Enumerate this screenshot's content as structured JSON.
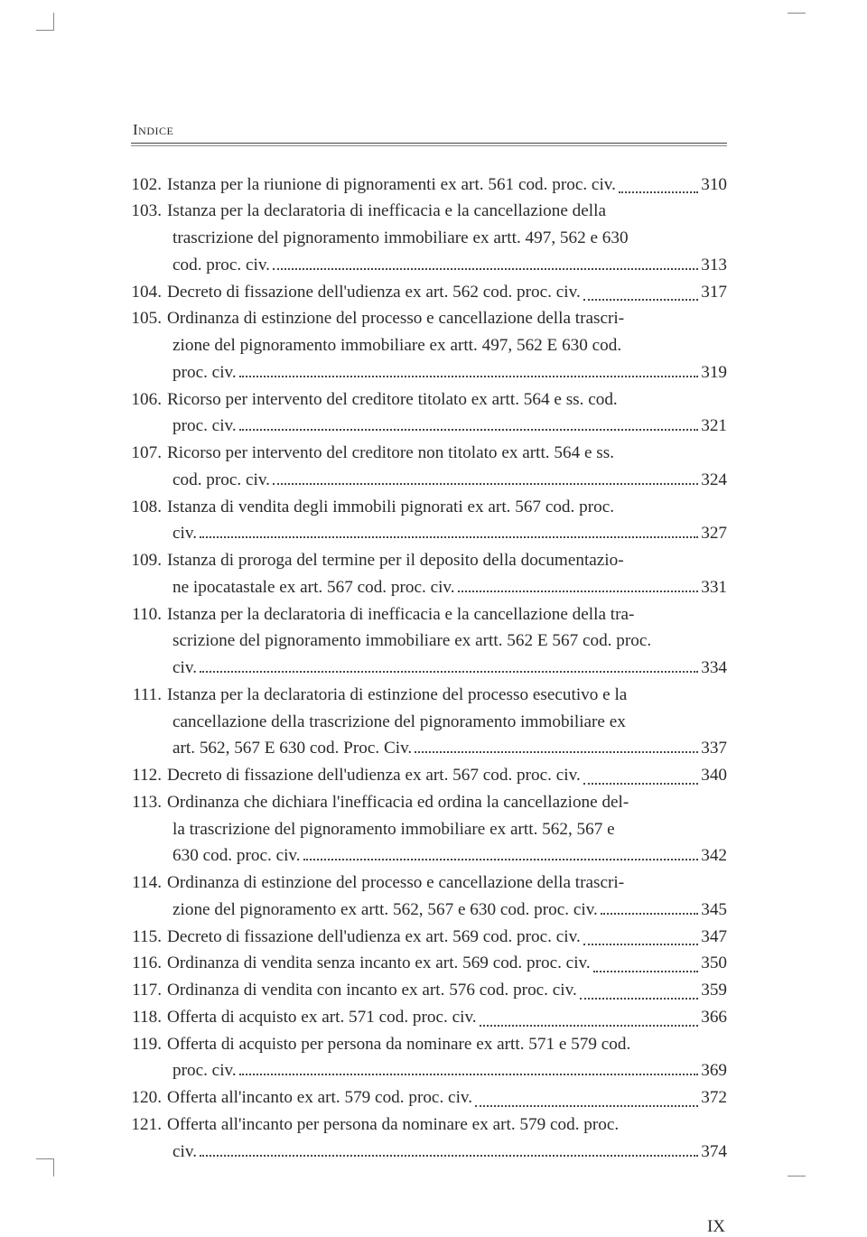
{
  "header": "Indice",
  "pageNumber": "IX",
  "entries": [
    {
      "num": "102.",
      "lines": [
        "Istanza per la riunione di pignoramenti ex art. 561 cod. proc. civ."
      ],
      "page": "310"
    },
    {
      "num": "103.",
      "lines": [
        "Istanza per la declaratoria di inefficacia e la cancellazione della",
        "trascrizione del pignoramento immobiliare ex artt. 497, 562 e 630",
        "cod. proc. civ."
      ],
      "page": "313"
    },
    {
      "num": "104.",
      "lines": [
        "Decreto di fissazione dell'udienza ex art. 562 cod. proc. civ. "
      ],
      "page": "317"
    },
    {
      "num": "105.",
      "lines": [
        "Ordinanza di estinzione del processo e cancellazione della trascri-",
        "zione del pignoramento immobiliare ex artt. 497, 562 E 630 cod.",
        "proc. civ."
      ],
      "page": "319"
    },
    {
      "num": "106.",
      "lines": [
        "Ricorso per intervento del creditore titolato ex artt. 564 e ss. cod.",
        "proc. civ."
      ],
      "page": "321"
    },
    {
      "num": "107.",
      "lines": [
        "Ricorso per intervento del creditore non titolato ex artt. 564 e ss.",
        "cod. proc. civ."
      ],
      "page": "324"
    },
    {
      "num": "108.",
      "lines": [
        "Istanza di vendita degli immobili pignorati ex art. 567 cod. proc.",
        "civ. "
      ],
      "page": "327"
    },
    {
      "num": "109.",
      "lines": [
        "Istanza di proroga del termine per il deposito della documentazio-",
        "ne ipocatastale ex art. 567 cod. proc. civ. "
      ],
      "page": "331"
    },
    {
      "num": "110.",
      "lines": [
        "Istanza per la declaratoria di inefficacia e la cancellazione della tra-",
        "scrizione del pignoramento immobiliare ex artt. 562 E 567 cod. proc.",
        "civ."
      ],
      "page": "334"
    },
    {
      "num": "111.",
      "lines": [
        "Istanza per la declaratoria di estinzione del processo esecutivo e la",
        "cancellazione della trascrizione del pignoramento immobiliare ex",
        "art. 562, 567 E 630 cod. Proc. Civ."
      ],
      "page": "337"
    },
    {
      "num": "112.",
      "lines": [
        "Decreto di fissazione dell'udienza ex art. 567 cod. proc. civ. "
      ],
      "page": "340"
    },
    {
      "num": "113.",
      "lines": [
        "Ordinanza che dichiara l'inefficacia ed ordina la cancellazione del-",
        "la trascrizione del pignoramento immobiliare ex artt. 562, 567 e",
        "630 cod. proc. civ."
      ],
      "page": "342"
    },
    {
      "num": "114.",
      "lines": [
        "Ordinanza di estinzione del processo e cancellazione della trascri-",
        "zione del pignoramento ex artt. 562, 567 e 630 cod. proc. civ."
      ],
      "page": "345"
    },
    {
      "num": "115.",
      "lines": [
        "Decreto di fissazione dell'udienza ex art. 569 cod. proc. civ. "
      ],
      "page": "347"
    },
    {
      "num": "116.",
      "lines": [
        "Ordinanza di vendita senza incanto ex art. 569 cod. proc. civ."
      ],
      "page": "350"
    },
    {
      "num": "117.",
      "lines": [
        "Ordinanza di vendita con incanto ex art. 576 cod. proc. civ."
      ],
      "page": "359"
    },
    {
      "num": "118.",
      "lines": [
        "Offerta di acquisto ex art. 571 cod. proc. civ."
      ],
      "page": "366"
    },
    {
      "num": "119.",
      "lines": [
        "Offerta di acquisto per persona da nominare ex artt. 571 e 579 cod.",
        "proc. civ."
      ],
      "page": "369"
    },
    {
      "num": "120.",
      "lines": [
        "Offerta all'incanto ex art. 579 cod. proc. civ. "
      ],
      "page": "372"
    },
    {
      "num": "121.",
      "lines": [
        "Offerta all'incanto per persona da nominare ex art. 579 cod. proc.",
        "civ."
      ],
      "page": "374"
    }
  ]
}
